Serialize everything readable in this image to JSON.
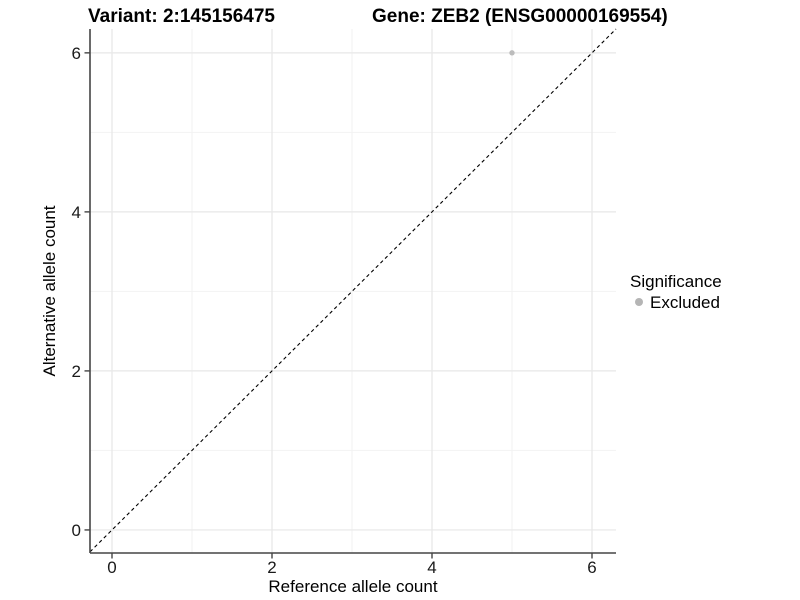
{
  "chart_data": {
    "type": "scatter",
    "title_left": "Variant: 2:145156475",
    "title_right": "Gene: ZEB2 (ENSG00000169554)",
    "xlabel": "Reference allele count",
    "ylabel": "Alternative allele count",
    "xlim": [
      -0.275,
      6.3
    ],
    "ylim": [
      -0.29,
      6.3
    ],
    "xticks": [
      0,
      2,
      4,
      6
    ],
    "yticks": [
      0,
      2,
      4,
      6
    ],
    "minor_xticks": [
      1,
      3,
      5
    ],
    "minor_yticks": [
      1,
      3,
      5
    ],
    "grid": "major+minor",
    "points": [
      {
        "x": 5,
        "y": 6,
        "series": "Excluded"
      }
    ],
    "reference_line": {
      "slope": 1,
      "intercept": 0,
      "style": "dashed"
    },
    "legend": {
      "title": "Significance",
      "position": "right",
      "items": [
        {
          "label": "Excluded",
          "marker": "circle",
          "color": "#b5b5b5"
        }
      ]
    }
  },
  "colors": {
    "background": "#ffffff",
    "point": "#bcbcbc",
    "grid_major": "#e7e7e7",
    "grid_minor": "#f2f2f2",
    "axis_line": "#454545",
    "tick_mark": "#454545",
    "reference_line": "#000000",
    "tick_text": "#1a1a1a",
    "title_text": "#000000"
  }
}
